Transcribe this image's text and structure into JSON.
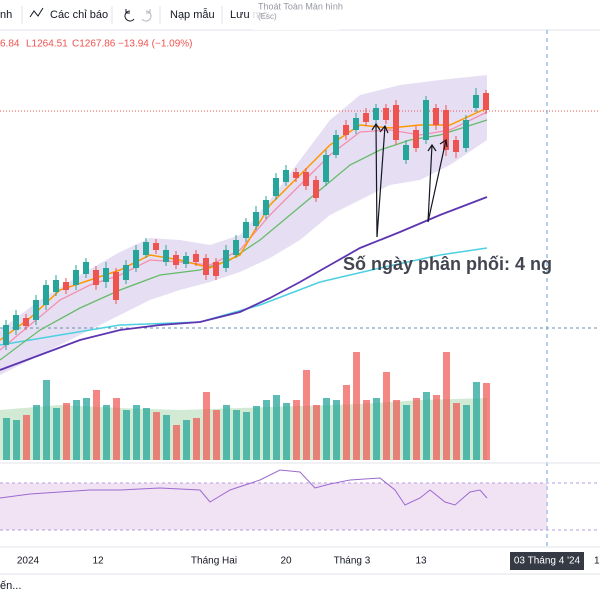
{
  "toolbar": {
    "items": [
      "nh",
      "Các chỉ báo",
      "Nạp mẫu",
      "Lưu mớ"
    ],
    "tooltip": {
      "title": "Thoát Toàn Màn hình",
      "shortcut": "(Esc)"
    }
  },
  "legend": {
    "open": "6.84",
    "low": "L1264.51",
    "close": "C1267.86",
    "change": "−13.94 (−1.09%)"
  },
  "annotation": "Số ngày phân phối: 4 ng",
  "x_axis": {
    "labels": [
      "2024",
      "12",
      "Tháng Hai",
      "20",
      "Tháng 3",
      "13"
    ],
    "current": "03 Tháng 4 '24",
    "next": "1"
  },
  "footer": "ến..."
}
